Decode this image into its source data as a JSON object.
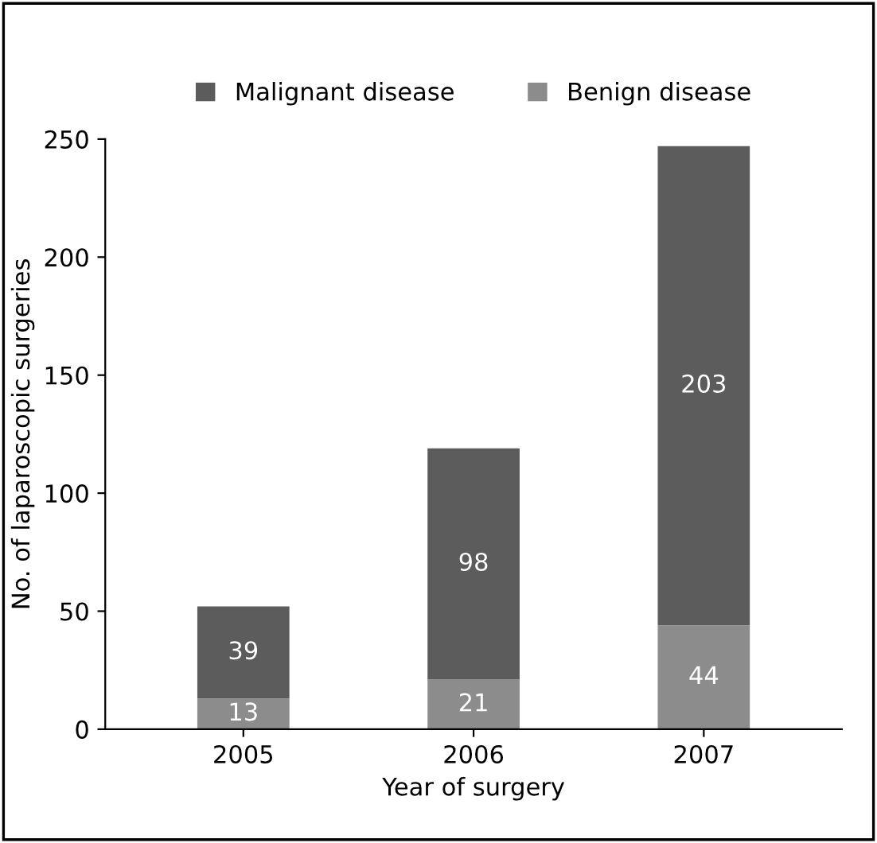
{
  "chart_data": {
    "type": "bar",
    "stacked": true,
    "xlabel": "Year of surgery",
    "ylabel": "No. of laparoscopic surgeries",
    "categories": [
      "2005",
      "2006",
      "2007"
    ],
    "series": [
      {
        "name": "Benign disease",
        "color": "#8c8c8c",
        "values": [
          13,
          21,
          44
        ]
      },
      {
        "name": "Malignant disease",
        "color": "#5c5c5c",
        "values": [
          39,
          98,
          203
        ]
      }
    ],
    "ylim": [
      0,
      250
    ],
    "yticks": [
      0,
      50,
      100,
      150,
      200,
      250
    ],
    "data_labels": true,
    "legend": "top",
    "grid": false
  }
}
